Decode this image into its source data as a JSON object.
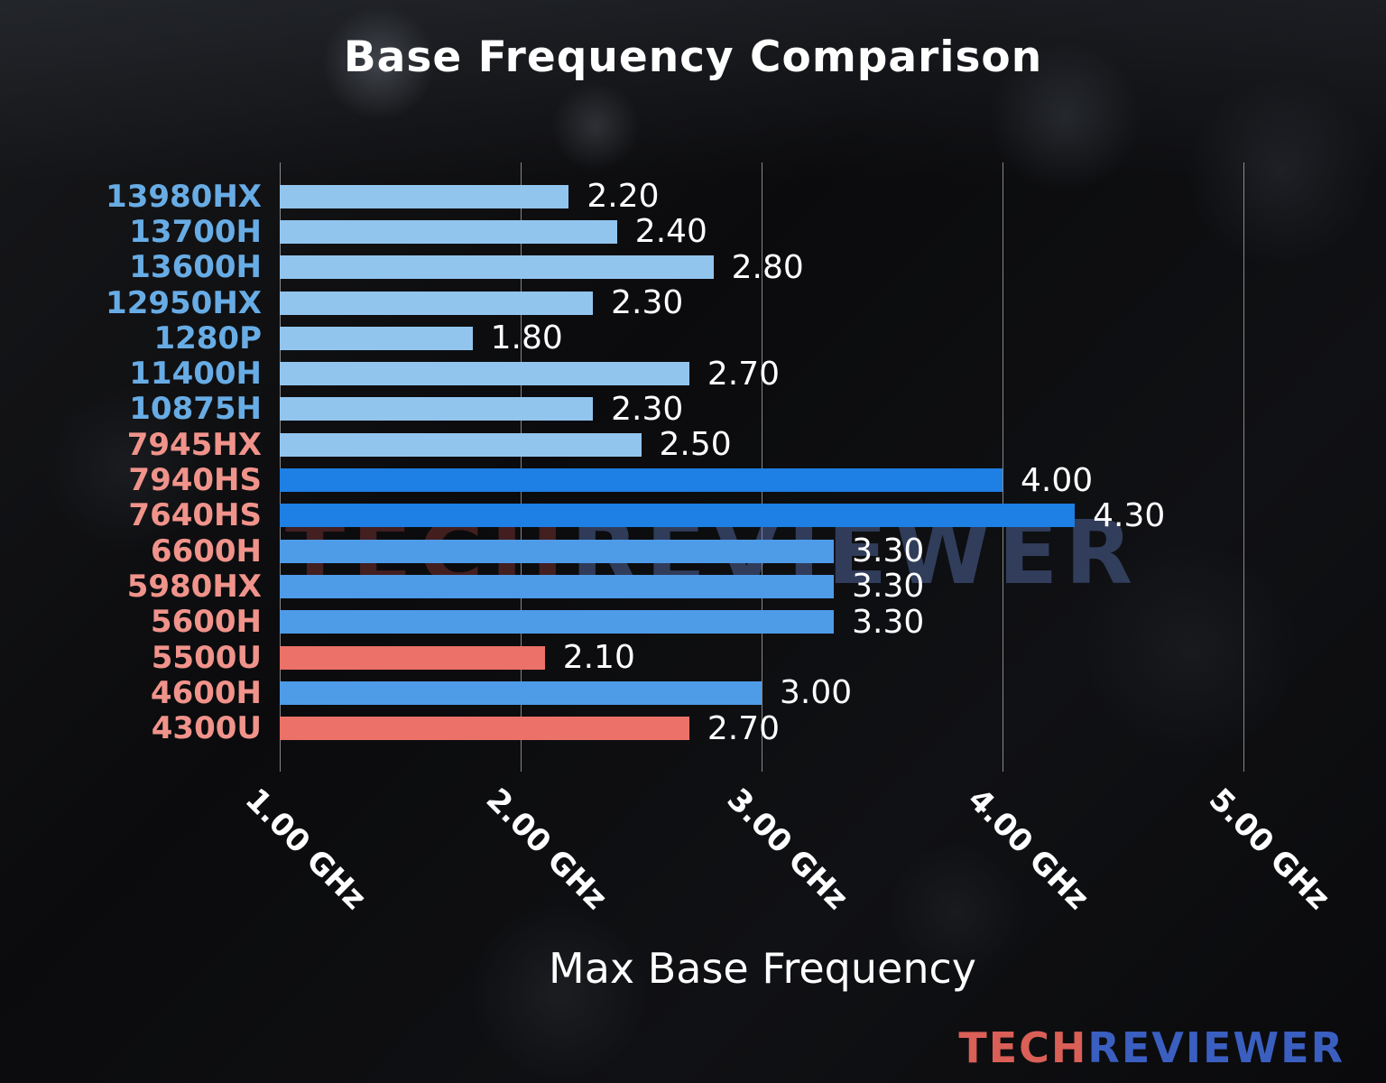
{
  "title": "Base Frequency Comparison",
  "xlabel": "Max Base Frequency",
  "watermark": {
    "tech": "TECH",
    "reviewer": "REVIEWER"
  },
  "logo": {
    "tech": "TECH",
    "reviewer": "REVIEWER"
  },
  "colors": {
    "background": "#0d0d0d",
    "title_text": "#ffffff",
    "value_text": "#ffffff",
    "tick_text": "#ffffff",
    "gridline": "#ebebeb",
    "intel_label": "#68ACE5",
    "amd_label": "#F0938B",
    "bar_lightblue": "#92C5EE",
    "bar_midblue": "#4E9BE8",
    "bar_vividblue": "#1E7FE4",
    "bar_salmon": "#EC7168",
    "logo_tech": "#D95F57",
    "logo_reviewer": "#3A5FC0"
  },
  "axis": {
    "min": 1.0,
    "max": 5.42,
    "ticks": [
      {
        "label": "1.00 GHz",
        "value": 1.0
      },
      {
        "label": "2.00 GHz",
        "value": 2.0
      },
      {
        "label": "3.00 GHz",
        "value": 3.0
      },
      {
        "label": "4.00 GHz",
        "value": 4.0
      },
      {
        "label": "5.00 GHz",
        "value": 5.0
      }
    ]
  },
  "chart_data": {
    "type": "bar",
    "orientation": "horizontal",
    "title": "Base Frequency Comparison",
    "xlabel": "Max Base Frequency",
    "xlim": [
      1.0,
      5.42
    ],
    "grid": true,
    "categories": [
      "13980HX",
      "13700H",
      "13600H",
      "12950HX",
      "1280P",
      "11400H",
      "10875H",
      "7945HX",
      "7940HS",
      "7640HS",
      "6600H",
      "5980HX",
      "5600H",
      "5500U",
      "4600H",
      "4300U"
    ],
    "values": [
      2.2,
      2.4,
      2.8,
      2.3,
      1.8,
      2.7,
      2.3,
      2.5,
      4.0,
      4.3,
      3.3,
      3.3,
      3.3,
      2.1,
      3.0,
      2.7
    ],
    "value_labels": [
      "2.20",
      "2.40",
      "2.80",
      "2.30",
      "1.80",
      "2.70",
      "2.30",
      "2.50",
      "4.00",
      "4.30",
      "3.30",
      "3.30",
      "3.30",
      "2.10",
      "3.00",
      "2.70"
    ],
    "bar_color_keys": [
      "lightblue",
      "lightblue",
      "lightblue",
      "lightblue",
      "lightblue",
      "lightblue",
      "lightblue",
      "lightblue",
      "vividblue",
      "vividblue",
      "midblue",
      "midblue",
      "midblue",
      "salmon",
      "midblue",
      "salmon"
    ],
    "label_color_keys": [
      "intel",
      "intel",
      "intel",
      "intel",
      "intel",
      "intel",
      "intel",
      "amd",
      "amd",
      "amd",
      "amd",
      "amd",
      "amd",
      "amd",
      "amd",
      "amd"
    ]
  }
}
